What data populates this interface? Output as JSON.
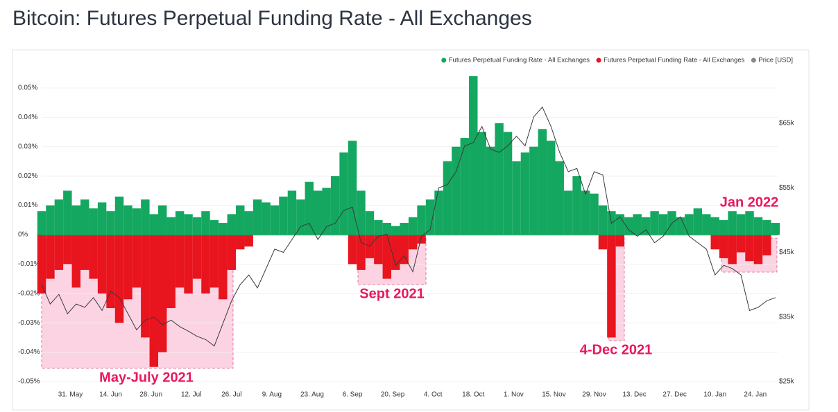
{
  "chart_data": {
    "type": "bar",
    "title": "Bitcoin: Futures Perpetual Funding Rate - All Exchanges",
    "x": [
      0,
      3,
      6,
      9,
      12,
      15,
      18,
      21,
      24,
      27,
      30,
      33,
      36,
      39,
      42,
      45,
      48,
      51,
      54,
      57,
      60,
      63,
      66,
      69,
      72,
      75,
      78,
      81,
      84,
      87,
      90,
      93,
      96,
      99,
      102,
      105,
      108,
      111,
      114,
      117,
      120,
      123,
      126,
      129,
      132,
      135,
      138,
      141,
      144,
      147,
      150,
      153,
      156,
      159,
      162,
      165,
      168,
      171,
      174,
      177,
      180,
      183,
      186,
      189,
      192,
      195,
      198,
      201,
      204,
      207,
      210,
      213,
      216,
      219,
      222,
      225,
      228,
      231,
      234,
      237,
      240,
      243,
      246,
      249,
      252,
      255
    ],
    "xlim": [
      0,
      256
    ],
    "xticks": [
      {
        "value": 10,
        "label": "31. May"
      },
      {
        "value": 24,
        "label": "14. Jun"
      },
      {
        "value": 38,
        "label": "28. Jun"
      },
      {
        "value": 52,
        "label": "12. Jul"
      },
      {
        "value": 66,
        "label": "26. Jul"
      },
      {
        "value": 80,
        "label": "9. Aug"
      },
      {
        "value": 94,
        "label": "23. Aug"
      },
      {
        "value": 108,
        "label": "6. Sep"
      },
      {
        "value": 122,
        "label": "20. Sep"
      },
      {
        "value": 136,
        "label": "4. Oct"
      },
      {
        "value": 150,
        "label": "18. Oct"
      },
      {
        "value": 164,
        "label": "1. Nov"
      },
      {
        "value": 178,
        "label": "15. Nov"
      },
      {
        "value": 192,
        "label": "29. Nov"
      },
      {
        "value": 206,
        "label": "13. Dec"
      },
      {
        "value": 220,
        "label": "27. Dec"
      },
      {
        "value": 234,
        "label": "10. Jan"
      },
      {
        "value": 248,
        "label": "24. Jan"
      }
    ],
    "ylim": [
      -0.05,
      0.05
    ],
    "yticks": [
      {
        "value": 0.05,
        "label": "0.05%"
      },
      {
        "value": 0.04,
        "label": "0.04%"
      },
      {
        "value": 0.03,
        "label": "0.03%"
      },
      {
        "value": 0.02,
        "label": "0.02%"
      },
      {
        "value": 0.01,
        "label": "0.01%"
      },
      {
        "value": 0,
        "label": "0%"
      },
      {
        "value": -0.01,
        "label": "-0.01%"
      },
      {
        "value": -0.02,
        "label": "-0.02%"
      },
      {
        "value": -0.03,
        "label": "-0.03%"
      },
      {
        "value": -0.04,
        "label": "-0.04%"
      },
      {
        "value": -0.05,
        "label": "-0.05%"
      }
    ],
    "y2lim": [
      25000,
      70470
    ],
    "y2ticks": [
      {
        "value": 25000,
        "label": "$25k"
      },
      {
        "value": 35000,
        "label": "$35k"
      },
      {
        "value": 45000,
        "label": "$45k"
      },
      {
        "value": 55000,
        "label": "$55k"
      },
      {
        "value": 65000,
        "label": "$65k"
      }
    ],
    "grid": true,
    "legend": "top-right",
    "series": [
      {
        "name": "Futures Perpetual Funding Rate - All Exchanges",
        "color": "#14a760",
        "values": [
          0.008,
          0.01,
          0.012,
          0.015,
          0.01,
          0.012,
          0.009,
          0.011,
          0.008,
          0.013,
          0.01,
          0.009,
          0.012,
          0.007,
          0.01,
          0.006,
          0.008,
          0.007,
          0.006,
          0.008,
          0.005,
          0.004,
          0.007,
          0.01,
          0.008,
          0.012,
          0.011,
          0.01,
          0.013,
          0.015,
          0.012,
          0.018,
          0.015,
          0.016,
          0.02,
          0.028,
          0.032,
          0.015,
          0.008,
          0.005,
          0.004,
          0.003,
          0.004,
          0.006,
          0.01,
          0.012,
          0.015,
          0.025,
          0.03,
          0.033,
          0.054,
          0.035,
          0.03,
          0.038,
          0.035,
          0.025,
          0.028,
          0.03,
          0.036,
          0.032,
          0.025,
          0.015,
          0.02,
          0.015,
          0.014,
          0.01,
          0.008,
          0.007,
          0.006,
          0.007,
          0.006,
          0.008,
          0.007,
          0.008,
          0.006,
          0.007,
          0.009,
          0.007,
          0.006,
          0.005,
          0.008,
          0.007,
          0.008,
          0.006,
          0.005,
          0.004
        ]
      },
      {
        "name": "Futures Perpetual Funding Rate - All Exchanges",
        "color": "#e8141e",
        "values": [
          -0.02,
          -0.015,
          -0.012,
          -0.01,
          -0.018,
          -0.012,
          -0.015,
          -0.02,
          -0.025,
          -0.03,
          -0.022,
          -0.018,
          -0.035,
          -0.045,
          -0.04,
          -0.025,
          -0.018,
          -0.02,
          -0.015,
          -0.02,
          -0.018,
          -0.022,
          -0.012,
          -0.005,
          -0.004,
          null,
          null,
          null,
          null,
          null,
          null,
          null,
          null,
          null,
          null,
          null,
          -0.01,
          -0.012,
          -0.008,
          -0.01,
          -0.015,
          -0.012,
          -0.01,
          -0.005,
          -0.003,
          null,
          null,
          null,
          null,
          null,
          null,
          null,
          null,
          null,
          null,
          null,
          null,
          null,
          null,
          null,
          null,
          null,
          null,
          null,
          null,
          -0.005,
          -0.035,
          -0.004,
          null,
          null,
          null,
          null,
          null,
          null,
          null,
          null,
          null,
          null,
          -0.005,
          -0.008,
          -0.01,
          -0.006,
          -0.009,
          -0.01,
          -0.007,
          null
        ]
      },
      {
        "name": "Price [USD]",
        "color": "#888888",
        "axis": "y2",
        "values": [
          40000,
          37000,
          38500,
          35500,
          37000,
          36500,
          38000,
          36000,
          39000,
          38000,
          35500,
          33000,
          34500,
          35000,
          33800,
          34500,
          33500,
          32800,
          32000,
          31500,
          30500,
          34000,
          37500,
          40000,
          41500,
          39500,
          42500,
          45500,
          45000,
          47000,
          49000,
          49500,
          47000,
          49000,
          49500,
          51500,
          52000,
          46500,
          46000,
          47500,
          47800,
          43000,
          44500,
          42000,
          47500,
          48500,
          55000,
          55500,
          57500,
          61500,
          62000,
          64500,
          61000,
          60500,
          61500,
          63000,
          61500,
          66000,
          67500,
          64500,
          60500,
          57500,
          58000,
          54000,
          57500,
          57000,
          49500,
          50500,
          48500,
          47500,
          48500,
          46500,
          47500,
          49500,
          50500,
          47500,
          46500,
          45500,
          41500,
          43000,
          42500,
          41500,
          36000,
          36500,
          37500,
          38000
        ]
      }
    ],
    "annotations": [
      "May-July 2021",
      "Sept 2021",
      "4-Dec 2021",
      "Jan 2022"
    ]
  }
}
